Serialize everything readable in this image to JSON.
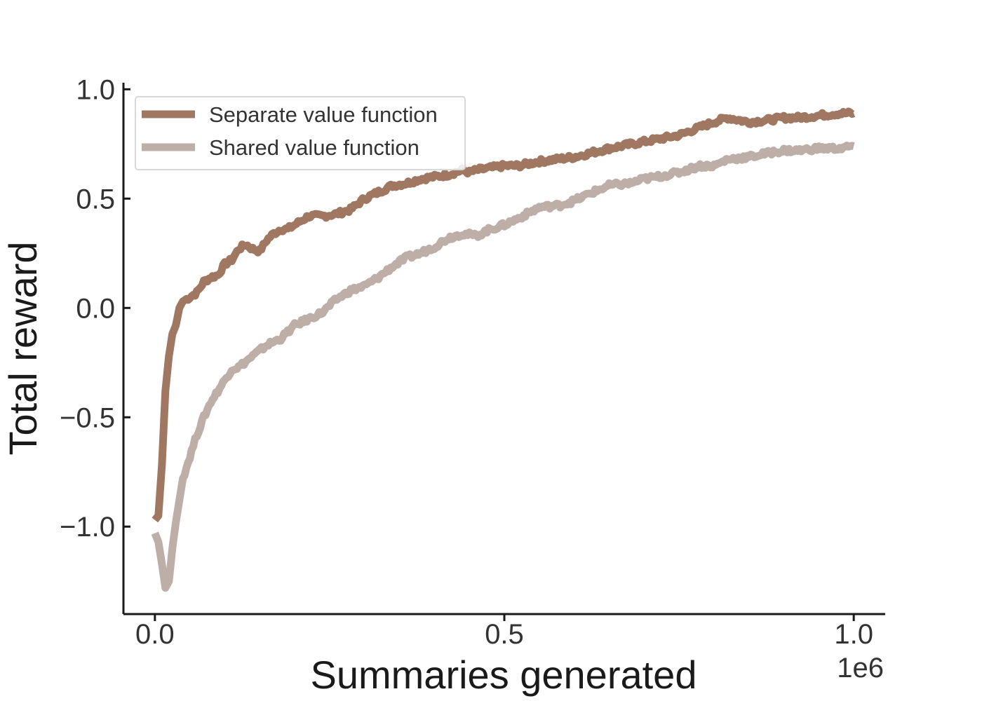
{
  "chart_data": {
    "type": "line",
    "title": "",
    "xlabel": "Summaries generated",
    "ylabel": "Total reward",
    "x_offset_label": "1e6",
    "xlim": [
      -0.045,
      1.045
    ],
    "ylim": [
      -1.4,
      1.03
    ],
    "xticks": [
      0.0,
      0.5,
      1.0
    ],
    "xtick_labels": [
      "0.0",
      "0.5",
      "1.0"
    ],
    "yticks": [
      -1.0,
      -0.5,
      0.0,
      0.5,
      1.0
    ],
    "ytick_labels": [
      "−1.0",
      "−0.5",
      "0.0",
      "0.5",
      "1.0"
    ],
    "grid": false,
    "legend_position": "top-left",
    "series": [
      {
        "name": "Separate value function",
        "color": "#a07862",
        "x": [
          0.0,
          0.005,
          0.01,
          0.015,
          0.02,
          0.025,
          0.03,
          0.035,
          0.04,
          0.045,
          0.05,
          0.06,
          0.07,
          0.08,
          0.09,
          0.1,
          0.11,
          0.12,
          0.13,
          0.14,
          0.15,
          0.16,
          0.17,
          0.18,
          0.19,
          0.2,
          0.22,
          0.24,
          0.26,
          0.28,
          0.3,
          0.32,
          0.34,
          0.36,
          0.38,
          0.4,
          0.42,
          0.44,
          0.45,
          0.46,
          0.48,
          0.5,
          0.52,
          0.55,
          0.6,
          0.65,
          0.7,
          0.75,
          0.8,
          0.82,
          0.85,
          0.88,
          0.9,
          0.92,
          0.95,
          0.98,
          1.0
        ],
        "y": [
          -0.97,
          -0.95,
          -0.72,
          -0.38,
          -0.22,
          -0.12,
          -0.08,
          0.0,
          0.03,
          0.04,
          0.05,
          0.07,
          0.12,
          0.14,
          0.15,
          0.2,
          0.22,
          0.27,
          0.29,
          0.27,
          0.26,
          0.31,
          0.34,
          0.36,
          0.36,
          0.38,
          0.42,
          0.42,
          0.43,
          0.45,
          0.5,
          0.53,
          0.56,
          0.57,
          0.59,
          0.6,
          0.61,
          0.63,
          0.62,
          0.63,
          0.64,
          0.65,
          0.65,
          0.67,
          0.69,
          0.73,
          0.76,
          0.79,
          0.85,
          0.87,
          0.85,
          0.86,
          0.87,
          0.87,
          0.88,
          0.89,
          0.89
        ]
      },
      {
        "name": "Shared value function",
        "color": "#bdaea8",
        "x": [
          0.0,
          0.005,
          0.01,
          0.015,
          0.02,
          0.025,
          0.03,
          0.035,
          0.04,
          0.05,
          0.06,
          0.07,
          0.08,
          0.09,
          0.1,
          0.11,
          0.12,
          0.14,
          0.16,
          0.18,
          0.2,
          0.22,
          0.24,
          0.26,
          0.28,
          0.3,
          0.32,
          0.34,
          0.36,
          0.38,
          0.4,
          0.42,
          0.44,
          0.46,
          0.48,
          0.5,
          0.52,
          0.55,
          0.58,
          0.6,
          0.62,
          0.65,
          0.68,
          0.7,
          0.72,
          0.75,
          0.78,
          0.8,
          0.82,
          0.85,
          0.88,
          0.9,
          0.92,
          0.95,
          0.98,
          1.0
        ],
        "y": [
          -1.03,
          -1.07,
          -1.17,
          -1.28,
          -1.25,
          -1.1,
          -0.98,
          -0.88,
          -0.78,
          -0.68,
          -0.58,
          -0.5,
          -0.43,
          -0.38,
          -0.33,
          -0.28,
          -0.27,
          -0.22,
          -0.17,
          -0.14,
          -0.08,
          -0.05,
          -0.02,
          0.04,
          0.08,
          0.1,
          0.14,
          0.19,
          0.23,
          0.25,
          0.28,
          0.32,
          0.34,
          0.33,
          0.36,
          0.38,
          0.41,
          0.46,
          0.47,
          0.49,
          0.52,
          0.56,
          0.57,
          0.59,
          0.6,
          0.62,
          0.65,
          0.65,
          0.68,
          0.69,
          0.71,
          0.72,
          0.72,
          0.73,
          0.73,
          0.74
        ]
      }
    ]
  }
}
